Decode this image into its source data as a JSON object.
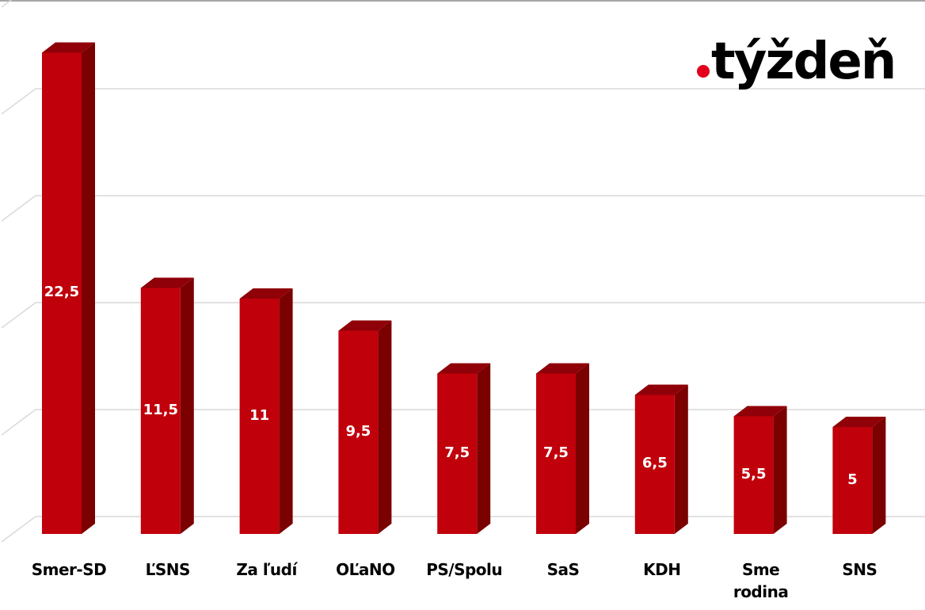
{
  "brand": {
    "logo_text": "týždeň",
    "logo_dot_color": "#e2001a"
  },
  "colors": {
    "bar_front": "#c0000b",
    "bar_side": "#7b0000",
    "bar_top": "#8f0008",
    "gridline": "#d9d9d9",
    "value_label": "#ffffff",
    "category_label": "#000000"
  },
  "chart_data": {
    "type": "bar",
    "style": "3d-column",
    "title": "",
    "xlabel": "",
    "ylabel": "",
    "ylim": [
      0,
      25
    ],
    "y_major_step": 5,
    "grid": true,
    "y_tick_labels_visible": false,
    "legend": null,
    "categories": [
      "Smer-SD",
      "ĽSNS",
      "Za ľudí",
      "OĽaNO",
      "PS/Spolu",
      "SaS",
      "KDH",
      "Sme rodina",
      "SNS"
    ],
    "values": [
      22.5,
      11.5,
      11,
      9.5,
      7.5,
      7.5,
      6.5,
      5.5,
      5
    ],
    "value_labels": [
      "22,5",
      "11,5",
      "11",
      "9,5",
      "7,5",
      "7,5",
      "6,5",
      "5,5",
      "5"
    ],
    "category_label_lines": [
      [
        "Smer-SD"
      ],
      [
        "ĽSNS"
      ],
      [
        "Za ľudí"
      ],
      [
        "OĽaNO"
      ],
      [
        "PS/Spolu"
      ],
      [
        "SaS"
      ],
      [
        "KDH"
      ],
      [
        "Sme",
        "rodina"
      ],
      [
        "SNS"
      ]
    ]
  }
}
